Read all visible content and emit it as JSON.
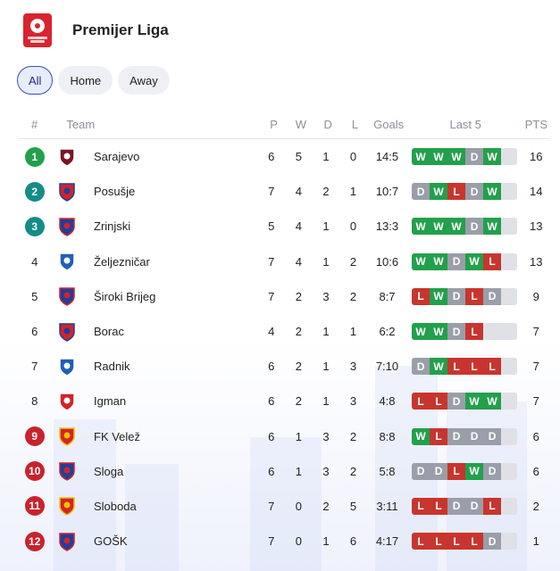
{
  "league": {
    "title": "Premijer Liga",
    "logo_icon": "premijer-liga-logo-icon"
  },
  "filters": [
    {
      "label": "All",
      "active": true
    },
    {
      "label": "Home",
      "active": false
    },
    {
      "label": "Away",
      "active": false
    }
  ],
  "columns": {
    "pos": "#",
    "team": "Team",
    "p": "P",
    "w": "W",
    "d": "D",
    "l": "L",
    "goals": "Goals",
    "last5": "Last 5",
    "pts": "PTS"
  },
  "colors": {
    "win": "#22a04b",
    "draw": "#9a9ea8",
    "loss": "#c8352e",
    "pos_green": "#22a04b",
    "pos_teal": "#158c87",
    "pos_red": "#c8232c"
  },
  "rows": [
    {
      "pos": "1",
      "pos_style": "green",
      "team": "Sarajevo",
      "crest": [
        "#7a1526",
        "#ffffff"
      ],
      "p": "6",
      "w": "5",
      "d": "1",
      "l": "0",
      "goals": "14:5",
      "form": [
        "W",
        "W",
        "W",
        "D",
        "W"
      ],
      "pts": "16"
    },
    {
      "pos": "2",
      "pos_style": "teal",
      "team": "Posušje",
      "crest": [
        "#d2232a",
        "#1f3f9a"
      ],
      "p": "7",
      "w": "4",
      "d": "2",
      "l": "1",
      "goals": "10:7",
      "form": [
        "D",
        "W",
        "L",
        "D",
        "W"
      ],
      "pts": "14"
    },
    {
      "pos": "3",
      "pos_style": "teal",
      "team": "Zrinjski",
      "crest": [
        "#1f3f9a",
        "#d2232a"
      ],
      "p": "5",
      "w": "4",
      "d": "1",
      "l": "0",
      "goals": "13:3",
      "form": [
        "W",
        "W",
        "W",
        "D",
        "W"
      ],
      "pts": "13"
    },
    {
      "pos": "4",
      "pos_style": "plain",
      "team": "Željezničar",
      "crest": [
        "#1f5fb8",
        "#ffffff"
      ],
      "p": "7",
      "w": "4",
      "d": "1",
      "l": "2",
      "goals": "10:6",
      "form": [
        "W",
        "W",
        "D",
        "W",
        "L"
      ],
      "pts": "13"
    },
    {
      "pos": "5",
      "pos_style": "plain",
      "team": "Široki Brijeg",
      "crest": [
        "#1f3f9a",
        "#d2232a"
      ],
      "p": "7",
      "w": "2",
      "d": "3",
      "l": "2",
      "goals": "8:7",
      "form": [
        "L",
        "W",
        "D",
        "L",
        "D"
      ],
      "pts": "9"
    },
    {
      "pos": "6",
      "pos_style": "plain",
      "team": "Borac",
      "crest": [
        "#d2232a",
        "#1f3f9a"
      ],
      "p": "4",
      "w": "2",
      "d": "1",
      "l": "1",
      "goals": "6:2",
      "form": [
        "W",
        "W",
        "D",
        "L"
      ],
      "pts": "7"
    },
    {
      "pos": "7",
      "pos_style": "plain",
      "team": "Radnik",
      "crest": [
        "#1f5fb8",
        "#ffffff"
      ],
      "p": "6",
      "w": "2",
      "d": "1",
      "l": "3",
      "goals": "7:10",
      "form": [
        "D",
        "W",
        "L",
        "L",
        "L"
      ],
      "pts": "7"
    },
    {
      "pos": "8",
      "pos_style": "plain",
      "team": "Igman",
      "crest": [
        "#d2232a",
        "#ffffff"
      ],
      "p": "6",
      "w": "2",
      "d": "1",
      "l": "3",
      "goals": "4:8",
      "form": [
        "L",
        "L",
        "D",
        "W",
        "W"
      ],
      "pts": "7"
    },
    {
      "pos": "9",
      "pos_style": "red",
      "team": "FK Velež",
      "crest": [
        "#d2232a",
        "#f2c200"
      ],
      "p": "6",
      "w": "1",
      "d": "3",
      "l": "2",
      "goals": "8:8",
      "form": [
        "W",
        "L",
        "D",
        "D",
        "D"
      ],
      "pts": "6"
    },
    {
      "pos": "10",
      "pos_style": "red",
      "team": "Sloga",
      "crest": [
        "#1f3f9a",
        "#d2232a"
      ],
      "p": "6",
      "w": "1",
      "d": "3",
      "l": "2",
      "goals": "5:8",
      "form": [
        "D",
        "D",
        "L",
        "W",
        "D"
      ],
      "pts": "6"
    },
    {
      "pos": "11",
      "pos_style": "red",
      "team": "Sloboda",
      "crest": [
        "#d2232a",
        "#f2c200"
      ],
      "p": "7",
      "w": "0",
      "d": "2",
      "l": "5",
      "goals": "3:11",
      "form": [
        "L",
        "L",
        "D",
        "D",
        "L"
      ],
      "pts": "2"
    },
    {
      "pos": "12",
      "pos_style": "red",
      "team": "GOŠK",
      "crest": [
        "#1f3f9a",
        "#d2232a"
      ],
      "p": "7",
      "w": "0",
      "d": "1",
      "l": "6",
      "goals": "4:17",
      "form": [
        "L",
        "L",
        "L",
        "L",
        "D"
      ],
      "pts": "1"
    }
  ]
}
